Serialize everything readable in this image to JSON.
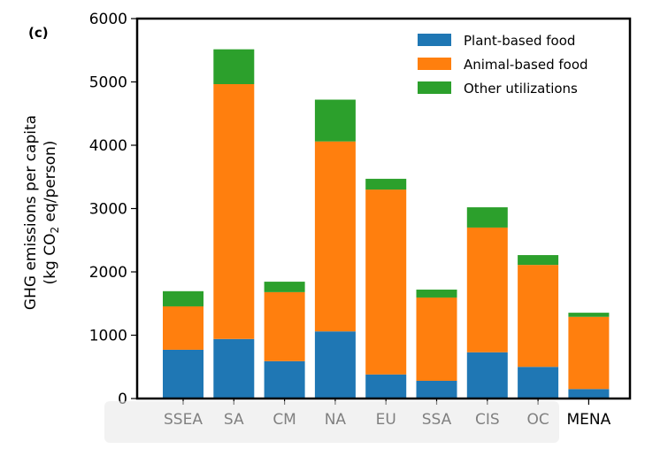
{
  "panel_label": "(c)",
  "chart_data": {
    "type": "bar",
    "stacked": true,
    "categories": [
      "SSEA",
      "SA",
      "CM",
      "NA",
      "EU",
      "SSA",
      "CIS",
      "OC",
      "MENA"
    ],
    "series": [
      {
        "name": "Plant-based food",
        "color": "#1f77b4",
        "values": [
          770,
          940,
          590,
          1060,
          380,
          280,
          730,
          500,
          150
        ]
      },
      {
        "name": "Animal-based food",
        "color": "#ff7f0e",
        "values": [
          685,
          4025,
          1090,
          3000,
          2920,
          1315,
          1970,
          1610,
          1140
        ]
      },
      {
        "name": "Other utilizations",
        "color": "#2ca02c",
        "values": [
          240,
          550,
          165,
          660,
          170,
          125,
          320,
          155,
          65
        ]
      }
    ],
    "ylabel_line1": "GHG emissions per capita",
    "ylabel_line2_prefix": "(kg CO",
    "ylabel_line2_sub": "2",
    "ylabel_line2_suffix": " eq/person)",
    "ylim": [
      0,
      6000
    ],
    "yticks": [
      "0",
      "1000",
      "2000",
      "3000",
      "4000",
      "5000",
      "6000"
    ],
    "ytick_values": [
      0,
      1000,
      2000,
      3000,
      4000,
      5000,
      6000
    ],
    "grid": false,
    "legend_position": "top-right"
  }
}
